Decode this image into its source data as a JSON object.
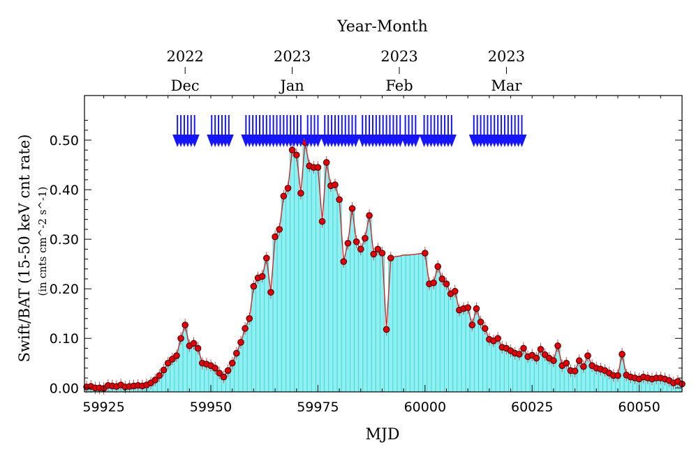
{
  "chart_data": {
    "type": "bar",
    "title": "Year-Month",
    "xlabel": "MJD",
    "ylabel": "Swift/BAT (15-50 keV cnt rate)",
    "ylabel_sub": "(in cnts cm^-2 s^-1)",
    "xlim": [
      59920.5,
      60060
    ],
    "ylim": [
      -0.008,
      0.59
    ],
    "x_ticks": [
      59925,
      59950,
      59975,
      60000,
      60025,
      60050
    ],
    "x_tick_labels": [
      "59925",
      "59950",
      "59975",
      "60000",
      "60025",
      "60050"
    ],
    "y_ticks": [
      0.0,
      0.1,
      0.2,
      0.3,
      0.4,
      0.5
    ],
    "y_tick_labels": [
      "0.00",
      "0.10",
      "0.20",
      "0.30",
      "0.40",
      "0.50"
    ],
    "top_axis": [
      {
        "mjd": 59944,
        "year": "2022",
        "month": "Dec"
      },
      {
        "mjd": 59969,
        "year": "2023",
        "month": "Jan"
      },
      {
        "mjd": 59994,
        "year": "2023",
        "month": "Feb"
      },
      {
        "mjd": 60019,
        "year": "2023",
        "month": "Mar"
      }
    ],
    "observation_arrows_mjd": [
      59942.2,
      59943.0,
      59943.8,
      59944.6,
      59945.4,
      59946.2,
      59950.2,
      59951.0,
      59951.8,
      59952.6,
      59953.4,
      59954.2,
      59958.2,
      59959.0,
      59959.8,
      59960.6,
      59961.4,
      59962.2,
      59963.0,
      59963.8,
      59964.6,
      59965.4,
      59966.2,
      59967.0,
      59967.8,
      59968.6,
      59969.4,
      59970.2,
      59971.0,
      59972.6,
      59973.4,
      59974.2,
      59975.0,
      59976.6,
      59977.4,
      59978.2,
      59979.0,
      59979.8,
      59980.6,
      59981.4,
      59982.2,
      59983.0,
      59983.8,
      59985.4,
      59986.2,
      59987.0,
      59987.8,
      59988.6,
      59989.4,
      59990.2,
      59991.0,
      59991.8,
      59992.6,
      59993.4,
      59994.2,
      59995.4,
      59996.2,
      59997.0,
      59997.8,
      59999.8,
      60000.6,
      60001.4,
      60002.2,
      60003.0,
      60003.8,
      60004.6,
      60005.4,
      60006.2,
      60011.4,
      60012.2,
      60013.0,
      60013.8,
      60014.6,
      60015.4,
      60016.2,
      60017.0,
      60017.8,
      60018.6,
      60019.4,
      60020.2,
      60021.0,
      60021.8,
      60022.6
    ],
    "series": [
      {
        "x": [
          59921,
          59922,
          59923,
          59924,
          59925,
          59926,
          59927,
          59928,
          59929,
          59930,
          59931,
          59932,
          59933,
          59934,
          59935,
          59936,
          59937,
          59938,
          59939,
          59940,
          59941,
          59942,
          59943,
          59944,
          59945,
          59946,
          59947,
          59948,
          59949,
          59950,
          59951,
          59952,
          59953,
          59954,
          59955,
          59956,
          59957,
          59958,
          59959,
          59960,
          59961,
          59962,
          59963,
          59964,
          59965,
          59966,
          59967,
          59968,
          59969,
          59970,
          59971,
          59972,
          59973,
          59974,
          59975,
          59976,
          59977,
          59978,
          59979,
          59980,
          59981,
          59982,
          59983,
          59984,
          59985,
          59986,
          59987,
          59988,
          59989,
          59990,
          59991,
          59992,
          59993,
          59994,
          59995,
          59996,
          59997,
          59998,
          59999,
          60000,
          60001,
          60002,
          60003,
          60004,
          60005,
          60006,
          60007,
          60008,
          60009,
          60010,
          60011,
          60012,
          60013,
          60014,
          60015,
          60016,
          60017,
          60018,
          60019,
          60020,
          60021,
          60022,
          60023,
          60024,
          60025,
          60026,
          60027,
          60028,
          60029,
          60030,
          60031,
          60032,
          60033,
          60034,
          60035,
          60036,
          60037,
          60038,
          60039,
          60040,
          60041,
          60042,
          60043,
          60044,
          60045,
          60046,
          60047,
          60048,
          60049,
          60050,
          60051,
          60052,
          60053,
          60054,
          60055,
          60056,
          60057,
          60058,
          60059,
          60060
        ],
        "y": [
          0.002,
          0.003,
          0.0,
          0.0,
          -0.001,
          0.005,
          0.004,
          0.003,
          0.006,
          0.002,
          0.003,
          0.004,
          0.005,
          0.004,
          0.006,
          0.01,
          0.016,
          0.025,
          0.036,
          0.05,
          0.058,
          0.065,
          0.1,
          0.127,
          0.085,
          0.09,
          0.08,
          0.05,
          0.048,
          0.045,
          0.04,
          0.03,
          0.022,
          0.035,
          0.05,
          0.07,
          0.092,
          0.12,
          0.14,
          0.205,
          0.222,
          0.225,
          0.262,
          0.193,
          0.305,
          0.32,
          0.387,
          0.403,
          0.48,
          0.47,
          0.393,
          0.495,
          0.448,
          0.445,
          0.445,
          0.336,
          0.455,
          0.408,
          0.41,
          0.38,
          0.255,
          0.292,
          0.362,
          0.295,
          0.28,
          0.302,
          0.348,
          0.27,
          0.28,
          0.272,
          0.118,
          0.262,
          0.265,
          0.266,
          0.268,
          0.268,
          0.269,
          0.27,
          0.271,
          0.272,
          0.21,
          0.212,
          0.245,
          0.22,
          0.21,
          0.19,
          0.195,
          0.157,
          0.16,
          0.162,
          0.127,
          0.16,
          0.133,
          0.12,
          0.098,
          0.095,
          0.1,
          0.082,
          0.08,
          0.075,
          0.07,
          0.068,
          0.08,
          0.063,
          0.066,
          0.06,
          0.078,
          0.067,
          0.06,
          0.055,
          0.085,
          0.045,
          0.05,
          0.035,
          0.034,
          0.055,
          0.043,
          0.065,
          0.045,
          0.04,
          0.038,
          0.035,
          0.03,
          0.025,
          0.025,
          0.068,
          0.026,
          0.022,
          0.02,
          0.018,
          0.022,
          0.02,
          0.018,
          0.02,
          0.02,
          0.018,
          0.015,
          0.01,
          0.013,
          0.008
        ],
        "markers": [
          59921,
          59922,
          59923,
          59924,
          59925,
          59926,
          59927,
          59928,
          59929,
          59930,
          59931,
          59932,
          59933,
          59934,
          59935,
          59936,
          59937,
          59938,
          59939,
          59940,
          59941,
          59942,
          59943,
          59944,
          59945,
          59946,
          59947,
          59948,
          59949,
          59950,
          59951,
          59952,
          59953,
          59954,
          59955,
          59956,
          59957,
          59958,
          59959,
          59960,
          59961,
          59962,
          59963,
          59964,
          59965,
          59966,
          59967,
          59968,
          59969,
          59970,
          59971,
          59972,
          59973,
          59974,
          59975,
          59976,
          59977,
          59978,
          59979,
          59980,
          59981,
          59982,
          59983,
          59984,
          59985,
          59986,
          59987,
          59988,
          59989,
          59990,
          59991,
          59992,
          60000,
          60001,
          60002,
          60003,
          60004,
          60005,
          60006,
          60007,
          60008,
          60009,
          60010,
          60011,
          60012,
          60013,
          60014,
          60015,
          60016,
          60017,
          60018,
          60019,
          60020,
          60021,
          60022,
          60023,
          60024,
          60025,
          60026,
          60027,
          60028,
          60029,
          60030,
          60031,
          60032,
          60033,
          60034,
          60035,
          60036,
          60037,
          60038,
          60039,
          60040,
          60041,
          60042,
          60043,
          60044,
          60045,
          60046,
          60047,
          60048,
          60049,
          60050,
          60051,
          60052,
          60053,
          60054,
          60055,
          60056,
          60057,
          60058,
          60059,
          60060
        ]
      }
    ],
    "colors": {
      "bar_fill": "#8ef0f0",
      "bar_edge": "#3fcfd6",
      "line": "#d11a1a",
      "marker_fill": "#e0000a",
      "marker_edge": "#3a0000",
      "arrow": "#1515ff",
      "axis": "#000000"
    }
  }
}
